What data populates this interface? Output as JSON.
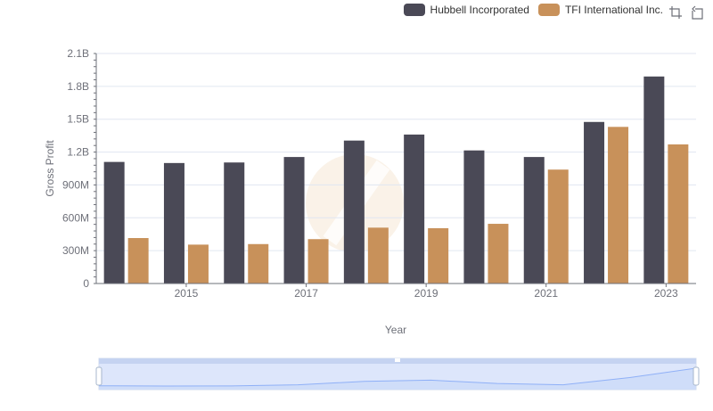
{
  "legend": {
    "series0": "Hubbell Incorporated",
    "series1": "TFI International Inc."
  },
  "toolbox": {
    "zoom_icon": "zoom-icon",
    "restore_icon": "restore-icon"
  },
  "colors": {
    "series0": "#4a4956",
    "series1": "#c8915a",
    "grid": "#e0e6f1",
    "slider_fill": "#dde6fb",
    "slider_border": "#8fb0f7"
  },
  "chart_data": {
    "type": "bar",
    "xlabel": "Year",
    "ylabel": "Gross Profit",
    "categories": [
      "2014",
      "2015",
      "2016",
      "2017",
      "2018",
      "2019",
      "2020",
      "2021",
      "2022",
      "2023"
    ],
    "x_tick_labels": [
      "2015",
      "2017",
      "2019",
      "2021",
      "2023"
    ],
    "y_tick_labels": [
      "0",
      "300M",
      "600M",
      "900M",
      "1.2B",
      "1.5B",
      "1.8B",
      "2.1B"
    ],
    "ylim": [
      0,
      2100000000
    ],
    "grid": true,
    "legend_position": "top-right",
    "series": [
      {
        "name": "Hubbell Incorporated",
        "values": [
          1110000000,
          1100000000,
          1105000000,
          1155000000,
          1305000000,
          1360000000,
          1215000000,
          1155000000,
          1475000000,
          1890000000
        ]
      },
      {
        "name": "TFI International Inc.",
        "values": [
          415000000,
          355000000,
          360000000,
          405000000,
          510000000,
          505000000,
          545000000,
          1040000000,
          1430000000,
          1270000000
        ]
      }
    ]
  }
}
